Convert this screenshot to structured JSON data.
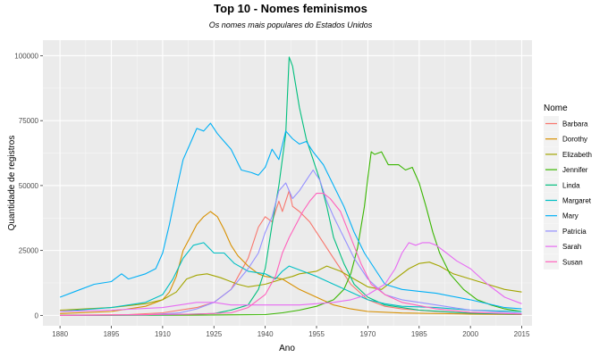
{
  "chart_data": {
    "type": "line",
    "title": "Top 10 - Nomes feminismos",
    "subtitle": "Os nomes mais populares do Estados Unidos",
    "xlabel": "Ano",
    "ylabel": "Quantidade de registros",
    "xlim": [
      1875,
      2018
    ],
    "ylim": [
      -4000,
      106000
    ],
    "x_ticks": [
      1880,
      1895,
      1910,
      1925,
      1940,
      1955,
      1970,
      1985,
      2000,
      2015
    ],
    "y_ticks": [
      0,
      25000,
      50000,
      75000,
      100000
    ],
    "y_tick_labels": [
      "0",
      "25000",
      "50000",
      "75000",
      "100000"
    ],
    "grid": true,
    "legend": {
      "title": "Nome",
      "position": "right"
    },
    "series": [
      {
        "name": "Barbara",
        "color": "#F8766D",
        "points": [
          [
            1880,
            100
          ],
          [
            1900,
            300
          ],
          [
            1910,
            1000
          ],
          [
            1920,
            3000
          ],
          [
            1925,
            5000
          ],
          [
            1930,
            10000
          ],
          [
            1935,
            22000
          ],
          [
            1938,
            34000
          ],
          [
            1940,
            38000
          ],
          [
            1942,
            36000
          ],
          [
            1944,
            44000
          ],
          [
            1945,
            40000
          ],
          [
            1947,
            48000
          ],
          [
            1948,
            42000
          ],
          [
            1950,
            40000
          ],
          [
            1953,
            36000
          ],
          [
            1956,
            30000
          ],
          [
            1960,
            22000
          ],
          [
            1965,
            12000
          ],
          [
            1970,
            6000
          ],
          [
            1975,
            3500
          ],
          [
            1980,
            2500
          ],
          [
            1990,
            1500
          ],
          [
            2000,
            800
          ],
          [
            2015,
            400
          ]
        ]
      },
      {
        "name": "Dorothy",
        "color": "#D89000",
        "points": [
          [
            1880,
            700
          ],
          [
            1895,
            1500
          ],
          [
            1905,
            3500
          ],
          [
            1910,
            6000
          ],
          [
            1912,
            9000
          ],
          [
            1914,
            15000
          ],
          [
            1916,
            25000
          ],
          [
            1918,
            30000
          ],
          [
            1920,
            35000
          ],
          [
            1922,
            38000
          ],
          [
            1924,
            40000
          ],
          [
            1926,
            38000
          ],
          [
            1928,
            33000
          ],
          [
            1930,
            27000
          ],
          [
            1932,
            23000
          ],
          [
            1935,
            19000
          ],
          [
            1938,
            16000
          ],
          [
            1940,
            15000
          ],
          [
            1945,
            14000
          ],
          [
            1950,
            10000
          ],
          [
            1955,
            7000
          ],
          [
            1960,
            4000
          ],
          [
            1965,
            2500
          ],
          [
            1970,
            1500
          ],
          [
            1980,
            900
          ],
          [
            2000,
            500
          ],
          [
            2015,
            300
          ]
        ]
      },
      {
        "name": "Elizabeth",
        "color": "#A3A500",
        "points": [
          [
            1880,
            2000
          ],
          [
            1895,
            3000
          ],
          [
            1905,
            4500
          ],
          [
            1910,
            6000
          ],
          [
            1914,
            9000
          ],
          [
            1917,
            14000
          ],
          [
            1920,
            15500
          ],
          [
            1923,
            16000
          ],
          [
            1927,
            14500
          ],
          [
            1932,
            12000
          ],
          [
            1935,
            11000
          ],
          [
            1940,
            12000
          ],
          [
            1945,
            14000
          ],
          [
            1948,
            15000
          ],
          [
            1950,
            16000
          ],
          [
            1955,
            17000
          ],
          [
            1958,
            19000
          ],
          [
            1962,
            17000
          ],
          [
            1966,
            14000
          ],
          [
            1970,
            11000
          ],
          [
            1974,
            10000
          ],
          [
            1978,
            14000
          ],
          [
            1982,
            18000
          ],
          [
            1985,
            20000
          ],
          [
            1988,
            20500
          ],
          [
            1991,
            19000
          ],
          [
            1995,
            16000
          ],
          [
            2000,
            14000
          ],
          [
            2005,
            12000
          ],
          [
            2010,
            10000
          ],
          [
            2015,
            9000
          ]
        ]
      },
      {
        "name": "Jennifer",
        "color": "#39B600",
        "points": [
          [
            1880,
            0
          ],
          [
            1920,
            100
          ],
          [
            1940,
            300
          ],
          [
            1945,
            1000
          ],
          [
            1950,
            2000
          ],
          [
            1955,
            3500
          ],
          [
            1960,
            6000
          ],
          [
            1963,
            10000
          ],
          [
            1965,
            16000
          ],
          [
            1967,
            26000
          ],
          [
            1969,
            42000
          ],
          [
            1970,
            53000
          ],
          [
            1971,
            63000
          ],
          [
            1972,
            62000
          ],
          [
            1974,
            63000
          ],
          [
            1976,
            58000
          ],
          [
            1979,
            58000
          ],
          [
            1981,
            56000
          ],
          [
            1983,
            57000
          ],
          [
            1985,
            51000
          ],
          [
            1987,
            42000
          ],
          [
            1989,
            32000
          ],
          [
            1991,
            24000
          ],
          [
            1994,
            16000
          ],
          [
            1998,
            10000
          ],
          [
            2002,
            6000
          ],
          [
            2006,
            4000
          ],
          [
            2010,
            2500
          ],
          [
            2015,
            1500
          ]
        ]
      },
      {
        "name": "Linda",
        "color": "#00BF7D",
        "points": [
          [
            1880,
            0
          ],
          [
            1910,
            200
          ],
          [
            1925,
            700
          ],
          [
            1930,
            2000
          ],
          [
            1935,
            4000
          ],
          [
            1938,
            10000
          ],
          [
            1940,
            18000
          ],
          [
            1942,
            35000
          ],
          [
            1944,
            50000
          ],
          [
            1946,
            70000
          ],
          [
            1947,
            99500
          ],
          [
            1948,
            96000
          ],
          [
            1950,
            80000
          ],
          [
            1952,
            68000
          ],
          [
            1954,
            60000
          ],
          [
            1956,
            52000
          ],
          [
            1958,
            42000
          ],
          [
            1960,
            30000
          ],
          [
            1963,
            20000
          ],
          [
            1966,
            12000
          ],
          [
            1970,
            7000
          ],
          [
            1975,
            4000
          ],
          [
            1985,
            2000
          ],
          [
            2000,
            800
          ],
          [
            2015,
            400
          ]
        ]
      },
      {
        "name": "Margaret",
        "color": "#00BFC4",
        "points": [
          [
            1880,
            1500
          ],
          [
            1895,
            3000
          ],
          [
            1905,
            5000
          ],
          [
            1910,
            8000
          ],
          [
            1913,
            14000
          ],
          [
            1916,
            22000
          ],
          [
            1919,
            27000
          ],
          [
            1922,
            28000
          ],
          [
            1925,
            24000
          ],
          [
            1928,
            24000
          ],
          [
            1931,
            20000
          ],
          [
            1935,
            17000
          ],
          [
            1940,
            16000
          ],
          [
            1943,
            14000
          ],
          [
            1945,
            17000
          ],
          [
            1947,
            19000
          ],
          [
            1949,
            18000
          ],
          [
            1951,
            17000
          ],
          [
            1955,
            15000
          ],
          [
            1960,
            12000
          ],
          [
            1965,
            9000
          ],
          [
            1970,
            6000
          ],
          [
            1975,
            4500
          ],
          [
            1980,
            3500
          ],
          [
            1990,
            3000
          ],
          [
            2000,
            2000
          ],
          [
            2015,
            1500
          ]
        ]
      },
      {
        "name": "Mary",
        "color": "#00B0F6",
        "points": [
          [
            1880,
            7000
          ],
          [
            1885,
            9500
          ],
          [
            1890,
            12000
          ],
          [
            1895,
            13000
          ],
          [
            1898,
            16000
          ],
          [
            1900,
            14000
          ],
          [
            1905,
            16000
          ],
          [
            1908,
            18000
          ],
          [
            1910,
            24000
          ],
          [
            1912,
            35000
          ],
          [
            1914,
            48000
          ],
          [
            1916,
            60000
          ],
          [
            1918,
            66000
          ],
          [
            1920,
            72000
          ],
          [
            1922,
            71000
          ],
          [
            1924,
            74000
          ],
          [
            1926,
            70000
          ],
          [
            1928,
            67000
          ],
          [
            1930,
            64000
          ],
          [
            1933,
            56000
          ],
          [
            1936,
            55000
          ],
          [
            1938,
            54000
          ],
          [
            1940,
            57000
          ],
          [
            1942,
            64000
          ],
          [
            1944,
            60000
          ],
          [
            1946,
            71000
          ],
          [
            1948,
            68000
          ],
          [
            1950,
            66000
          ],
          [
            1952,
            67000
          ],
          [
            1954,
            63000
          ],
          [
            1957,
            58000
          ],
          [
            1960,
            50000
          ],
          [
            1963,
            42000
          ],
          [
            1966,
            32000
          ],
          [
            1969,
            24000
          ],
          [
            1972,
            18000
          ],
          [
            1975,
            12000
          ],
          [
            1980,
            10000
          ],
          [
            1990,
            8500
          ],
          [
            2000,
            6000
          ],
          [
            2010,
            3000
          ],
          [
            2015,
            2500
          ]
        ]
      },
      {
        "name": "Patricia",
        "color": "#9590FF",
        "points": [
          [
            1880,
            0
          ],
          [
            1905,
            200
          ],
          [
            1915,
            1000
          ],
          [
            1920,
            2500
          ],
          [
            1925,
            5000
          ],
          [
            1930,
            10000
          ],
          [
            1935,
            18000
          ],
          [
            1938,
            24000
          ],
          [
            1940,
            32000
          ],
          [
            1942,
            38000
          ],
          [
            1944,
            48000
          ],
          [
            1946,
            51000
          ],
          [
            1948,
            45000
          ],
          [
            1950,
            48000
          ],
          [
            1952,
            52000
          ],
          [
            1954,
            56000
          ],
          [
            1956,
            52000
          ],
          [
            1958,
            44000
          ],
          [
            1960,
            38000
          ],
          [
            1963,
            30000
          ],
          [
            1966,
            22000
          ],
          [
            1970,
            14000
          ],
          [
            1975,
            8000
          ],
          [
            1980,
            6000
          ],
          [
            1990,
            4000
          ],
          [
            2000,
            2000
          ],
          [
            2015,
            800
          ]
        ]
      },
      {
        "name": "Sarah",
        "color": "#E76BF3",
        "points": [
          [
            1880,
            1500
          ],
          [
            1895,
            2000
          ],
          [
            1910,
            3000
          ],
          [
            1920,
            5000
          ],
          [
            1925,
            5000
          ],
          [
            1930,
            4000
          ],
          [
            1940,
            4000
          ],
          [
            1950,
            4000
          ],
          [
            1960,
            5000
          ],
          [
            1965,
            6000
          ],
          [
            1970,
            8000
          ],
          [
            1975,
            12000
          ],
          [
            1978,
            18000
          ],
          [
            1980,
            24000
          ],
          [
            1982,
            28000
          ],
          [
            1984,
            27000
          ],
          [
            1986,
            28000
          ],
          [
            1988,
            28000
          ],
          [
            1990,
            27000
          ],
          [
            1993,
            24000
          ],
          [
            1996,
            21000
          ],
          [
            2000,
            18000
          ],
          [
            2005,
            12000
          ],
          [
            2010,
            7000
          ],
          [
            2015,
            4500
          ]
        ]
      },
      {
        "name": "Susan",
        "color": "#FF62BC",
        "points": [
          [
            1880,
            0
          ],
          [
            1920,
            500
          ],
          [
            1930,
            1000
          ],
          [
            1935,
            3000
          ],
          [
            1940,
            8000
          ],
          [
            1943,
            15000
          ],
          [
            1945,
            24000
          ],
          [
            1947,
            30000
          ],
          [
            1949,
            35000
          ],
          [
            1951,
            40000
          ],
          [
            1953,
            44000
          ],
          [
            1955,
            47000
          ],
          [
            1957,
            47000
          ],
          [
            1959,
            45000
          ],
          [
            1962,
            40000
          ],
          [
            1965,
            30000
          ],
          [
            1968,
            20000
          ],
          [
            1971,
            12000
          ],
          [
            1975,
            8000
          ],
          [
            1980,
            5000
          ],
          [
            1990,
            2500
          ],
          [
            2000,
            1200
          ],
          [
            2015,
            500
          ]
        ]
      }
    ]
  }
}
